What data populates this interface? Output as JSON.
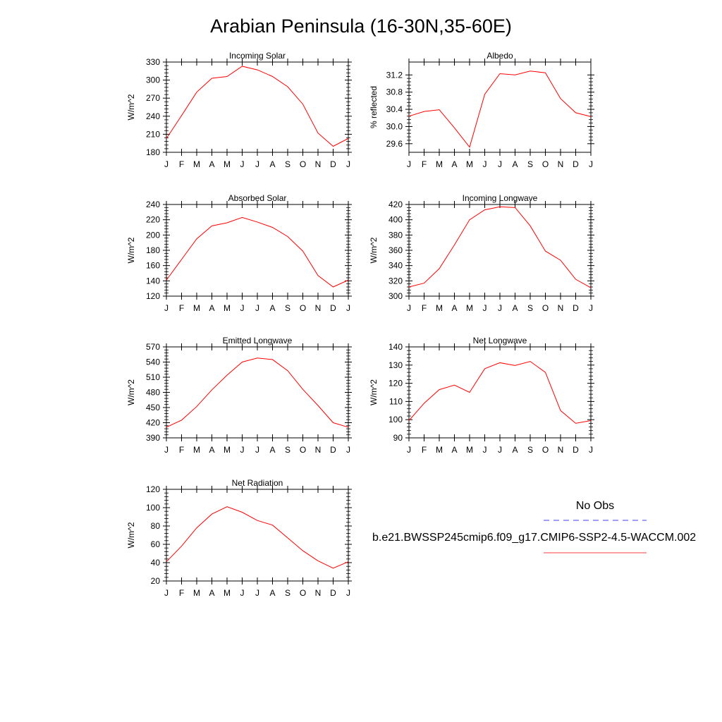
{
  "title": "Arabian Peninsula (16-30N,35-60E)",
  "months": [
    "J",
    "F",
    "M",
    "A",
    "M",
    "J",
    "J",
    "A",
    "S",
    "O",
    "N",
    "D",
    "J"
  ],
  "colors": {
    "model": "#ff0000",
    "obs": "#0000ff",
    "axis": "#000000"
  },
  "chart_data": [
    {
      "type": "line",
      "title": "Incoming Solar",
      "ylabel": "W/m^2",
      "ylim": [
        180,
        330
      ],
      "yticks": [
        180,
        210,
        240,
        270,
        300,
        330
      ],
      "xlim": [
        0,
        12
      ],
      "series": [
        {
          "values": [
            203,
            241,
            280,
            303,
            306,
            323,
            317,
            306,
            289,
            260,
            212,
            190,
            203
          ]
        }
      ]
    },
    {
      "type": "line",
      "title": "Albedo",
      "ylabel": "% reflected",
      "ylim": [
        29.4,
        31.5
      ],
      "yticks": [
        29.6,
        30.0,
        30.4,
        30.8,
        31.2
      ],
      "yticklabels": [
        "29.6",
        "30.0",
        "30.4",
        "30.8",
        "31.2"
      ],
      "xlim": [
        0,
        12
      ],
      "series": [
        {
          "values": [
            30.24,
            30.35,
            30.39,
            29.97,
            29.52,
            30.75,
            31.23,
            31.2,
            31.29,
            31.25,
            30.65,
            30.32,
            30.23
          ]
        }
      ]
    },
    {
      "type": "line",
      "title": "Absorbed Solar",
      "ylabel": "W/m^2",
      "ylim": [
        120,
        240
      ],
      "yticks": [
        120,
        140,
        160,
        180,
        200,
        220,
        240
      ],
      "xlim": [
        0,
        12
      ],
      "series": [
        {
          "values": [
            141,
            168,
            195,
            212,
            216,
            223,
            217,
            210,
            198,
            179,
            147,
            132,
            141
          ]
        }
      ]
    },
    {
      "type": "line",
      "title": "Incoming Longwave",
      "ylabel": "W/m^2",
      "ylim": [
        300,
        420
      ],
      "yticks": [
        300,
        320,
        340,
        360,
        380,
        400,
        420
      ],
      "xlim": [
        0,
        12
      ],
      "series": [
        {
          "values": [
            312,
            317,
            336,
            367,
            400,
            413,
            417,
            416,
            392,
            359,
            347,
            322,
            311
          ]
        }
      ]
    },
    {
      "type": "line",
      "title": "Emitted Longwave",
      "ylabel": "W/m^2",
      "ylim": [
        390,
        570
      ],
      "yticks": [
        390,
        420,
        450,
        480,
        510,
        540,
        570
      ],
      "xlim": [
        0,
        12
      ],
      "series": [
        {
          "values": [
            411,
            425,
            452,
            485,
            514,
            540,
            548,
            545,
            523,
            486,
            454,
            420,
            411
          ]
        }
      ]
    },
    {
      "type": "line",
      "title": "Net Longwave",
      "ylabel": "W/m^2",
      "ylim": [
        90,
        140
      ],
      "yticks": [
        90,
        100,
        110,
        120,
        130,
        140
      ],
      "xlim": [
        0,
        12
      ],
      "series": [
        {
          "values": [
            99.5,
            109,
            116.5,
            119,
            115,
            128,
            131.3,
            129.8,
            132,
            126,
            105,
            98,
            99.5
          ]
        }
      ]
    },
    {
      "type": "line",
      "title": "Net Radiation",
      "ylabel": "W/m^2",
      "ylim": [
        20,
        120
      ],
      "yticks": [
        20,
        40,
        60,
        80,
        100,
        120
      ],
      "xlim": [
        0,
        12
      ],
      "series": [
        {
          "values": [
            41,
            58,
            78,
            93,
            101,
            95,
            86,
            81,
            67,
            53,
            42,
            34,
            41
          ]
        }
      ]
    }
  ],
  "legend": {
    "obs_label": "No Obs",
    "model_label": "b.e21.BWSSP245cmip6.f09_g17.CMIP6-SSP2-4.5-WACCM.002"
  }
}
